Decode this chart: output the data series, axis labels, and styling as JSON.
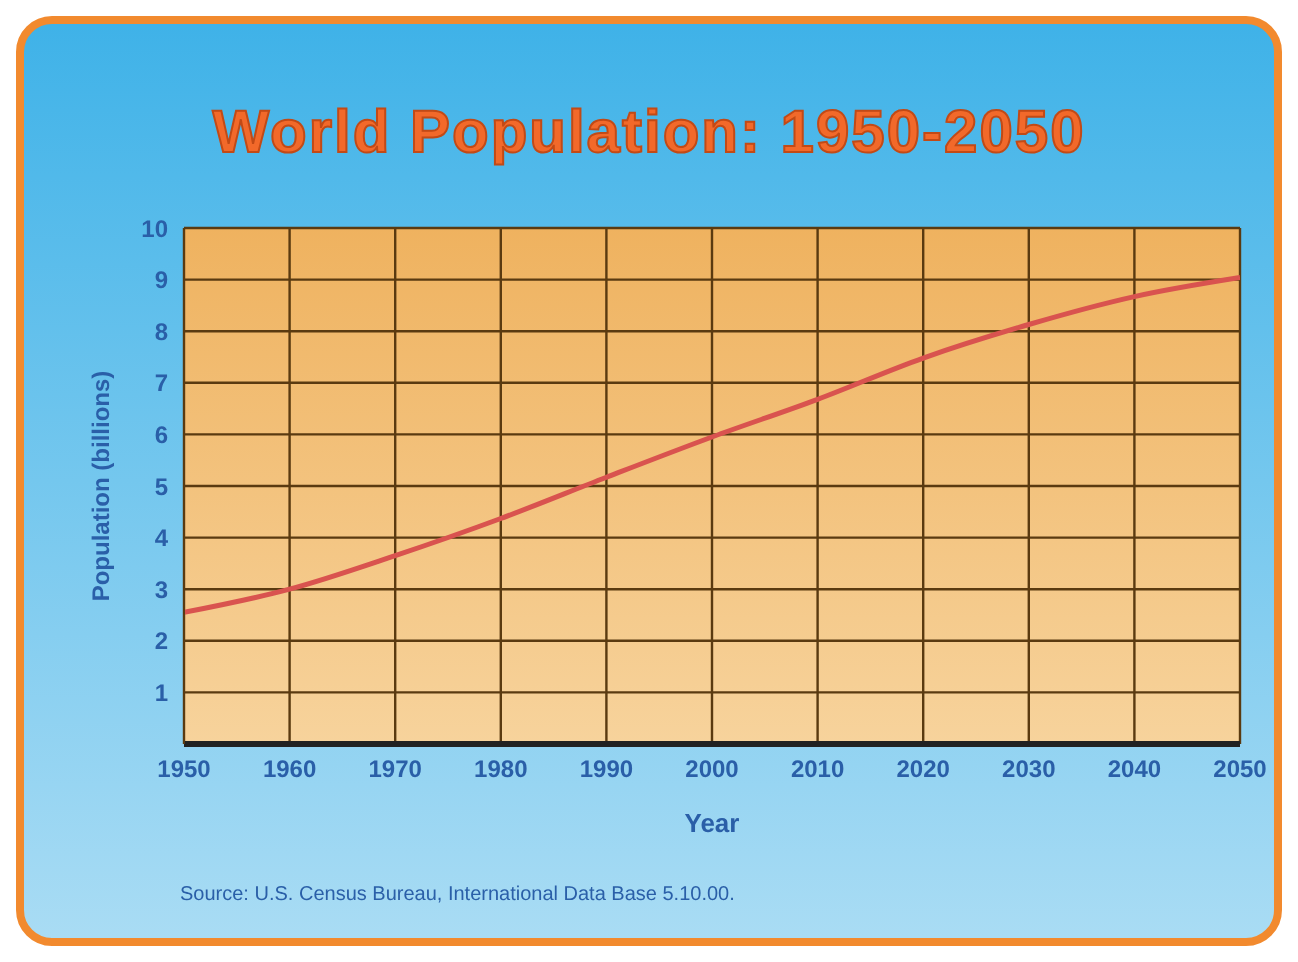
{
  "chart_data": {
    "type": "line",
    "title": "World Population: 1950-2050",
    "xlabel": "Year",
    "ylabel": "Population (billions)",
    "x": [
      1950,
      1960,
      1970,
      1980,
      1990,
      2000,
      2010,
      2020,
      2030,
      2040,
      2050
    ],
    "series": [
      {
        "color": "#d9534f",
        "values": [
          2.55,
          3.0,
          3.65,
          4.37,
          5.17,
          5.95,
          6.68,
          7.48,
          8.13,
          8.67,
          9.04
        ]
      }
    ],
    "xlim": [
      1950,
      2050
    ],
    "xticks": [
      1950,
      1960,
      1970,
      1980,
      1990,
      2000,
      2010,
      2020,
      2030,
      2040,
      2050
    ],
    "ylim": [
      0,
      10
    ],
    "yticks": [
      {
        "value": 0,
        "label": null
      },
      1,
      2,
      3,
      4,
      5,
      6,
      7,
      8,
      9,
      10
    ],
    "grid": true,
    "marker": "none",
    "line_style": "solid",
    "annotations": [
      "Source: U.S. Census Bureau, International Data Base 5.10.00."
    ]
  }
}
